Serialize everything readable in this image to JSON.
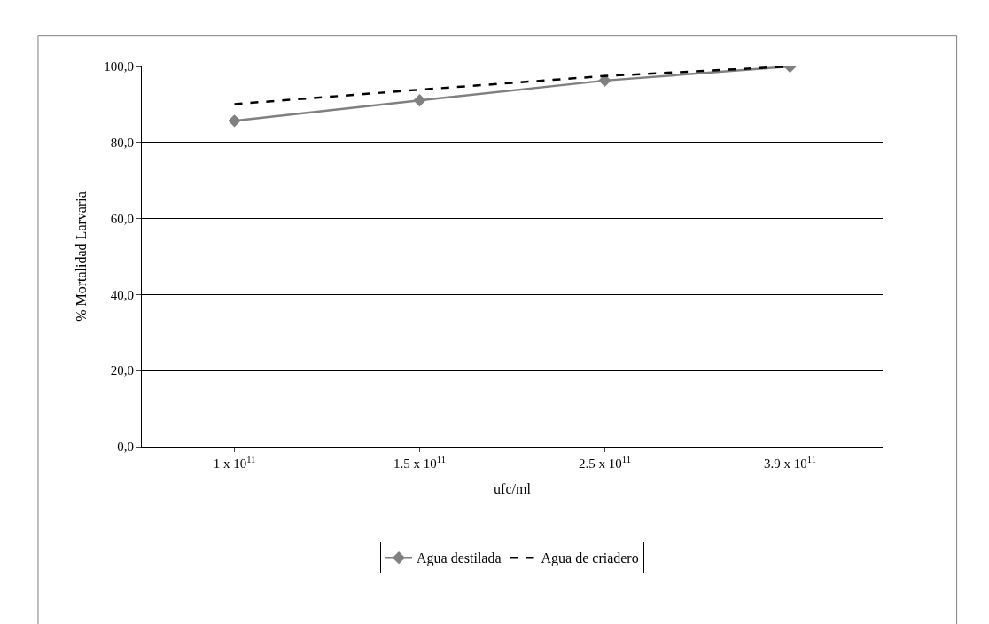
{
  "chart_data": {
    "type": "line",
    "xlabel": "ufc/ml",
    "ylabel": "% Mortalidad Larvaria",
    "categories": [
      "1 x 10$^{11}$",
      "1.5 x 10$^{11}$",
      "2.5 x 10$^{11}$",
      "3.9 x 10$^{11}$"
    ],
    "series": [
      {
        "name": "Agua destilada",
        "color": "#808080",
        "marker": "diamond",
        "line_style": "solid",
        "values": [
          85.7,
          91.1,
          96.3,
          100.0
        ]
      },
      {
        "name": "Agua de criadero",
        "color": "#000000",
        "marker": "none",
        "line_style": "dashed",
        "values": [
          90.1,
          93.9,
          97.5,
          100.0
        ]
      }
    ],
    "ylim": [
      0,
      100
    ],
    "yticks": [
      {
        "value": 0,
        "label": "0,0"
      },
      {
        "value": 20,
        "label": "20,0"
      },
      {
        "value": 40,
        "label": "40,0"
      },
      {
        "value": 60,
        "label": "60,0"
      },
      {
        "value": 80,
        "label": "80,0"
      },
      {
        "value": 100,
        "label": "100,0"
      }
    ],
    "grid": "y",
    "legend": "bottom"
  }
}
